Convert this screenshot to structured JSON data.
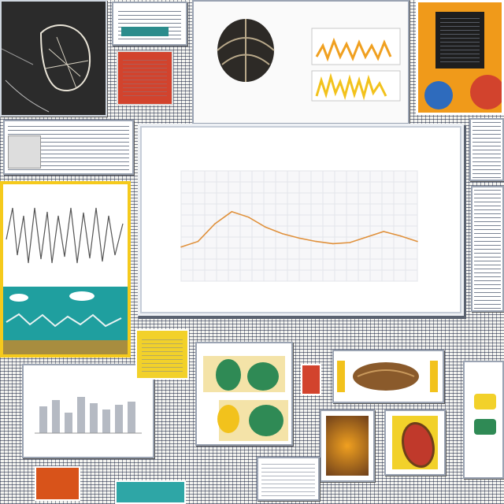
{
  "chart_data": {
    "type": "line",
    "title": "",
    "xlabel": "",
    "ylabel": "",
    "x": [
      1,
      2,
      3,
      4,
      5,
      6,
      7,
      8,
      9,
      10,
      11,
      12,
      13,
      14,
      15
    ],
    "series": [
      {
        "values": [
          31,
          36,
          52,
          63,
          58,
          49,
          43,
          39,
          36,
          34,
          35,
          40,
          45,
          41,
          36
        ]
      }
    ],
    "ylim": [
      0,
      100
    ],
    "grid": true,
    "line_color": "#e0913c"
  },
  "colors": {
    "accent_orange": "#f0a020",
    "accent_red": "#d2432d",
    "accent_teal": "#2ea6a6",
    "accent_yellow": "#f2d12a",
    "accent_green": "#2f8a55"
  }
}
